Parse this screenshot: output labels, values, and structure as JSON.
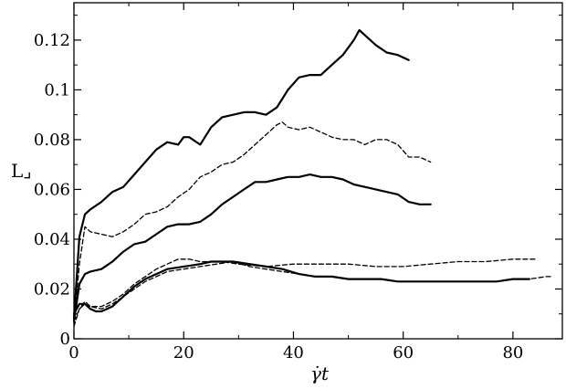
{
  "chart_data": {
    "type": "line",
    "xlabel": "γ̇t",
    "ylabel": "L⌟",
    "xlim": [
      0,
      89
    ],
    "ylim": [
      0,
      0.135
    ],
    "x_ticks": [
      0,
      20,
      40,
      60,
      80
    ],
    "x_tick_labels": [
      "0",
      "20",
      "40",
      "60",
      "80"
    ],
    "y_ticks": [
      0,
      0.02,
      0.04,
      0.06,
      0.08,
      0.1,
      0.12
    ],
    "y_tick_labels": [
      "0",
      "0.02",
      "0.04",
      "0.06",
      "0.08",
      "0.1",
      "0.12"
    ],
    "grid": false,
    "legend": "none",
    "series": [
      {
        "style": "solid",
        "width": 2.2,
        "color": "#000000",
        "x": [
          0,
          1,
          2,
          3,
          5,
          7,
          9,
          11,
          13,
          15,
          17,
          19,
          20,
          21,
          23,
          25,
          27,
          29,
          31,
          33,
          35,
          37,
          39,
          41,
          43,
          45,
          47,
          49,
          51,
          52,
          53,
          55,
          57,
          59,
          61
        ],
        "y": [
          0.008,
          0.041,
          0.05,
          0.052,
          0.055,
          0.059,
          0.061,
          0.066,
          0.071,
          0.076,
          0.079,
          0.078,
          0.081,
          0.081,
          0.078,
          0.085,
          0.089,
          0.09,
          0.091,
          0.091,
          0.09,
          0.093,
          0.1,
          0.105,
          0.106,
          0.106,
          0.11,
          0.114,
          0.12,
          0.124,
          0.122,
          0.118,
          0.115,
          0.114,
          0.112
        ]
      },
      {
        "style": "dashed",
        "width": 1.3,
        "color": "#000000",
        "x": [
          0,
          1,
          2,
          3,
          5,
          7,
          9,
          11,
          13,
          15,
          17,
          19,
          21,
          23,
          25,
          27,
          29,
          31,
          33,
          35,
          37,
          38,
          39,
          41,
          43,
          45,
          47,
          49,
          51,
          53,
          55,
          57,
          59,
          61,
          63,
          65
        ],
        "y": [
          0.006,
          0.03,
          0.045,
          0.043,
          0.042,
          0.041,
          0.043,
          0.046,
          0.05,
          0.051,
          0.053,
          0.057,
          0.06,
          0.065,
          0.067,
          0.07,
          0.071,
          0.074,
          0.078,
          0.082,
          0.086,
          0.087,
          0.085,
          0.084,
          0.085,
          0.083,
          0.081,
          0.08,
          0.08,
          0.078,
          0.08,
          0.08,
          0.078,
          0.073,
          0.073,
          0.071
        ]
      },
      {
        "style": "solid",
        "width": 2.2,
        "color": "#000000",
        "x": [
          0,
          1,
          2,
          3,
          5,
          7,
          9,
          11,
          13,
          15,
          17,
          19,
          21,
          23,
          25,
          27,
          29,
          31,
          33,
          35,
          37,
          39,
          41,
          43,
          45,
          47,
          49,
          51,
          53,
          55,
          57,
          59,
          61,
          63,
          65
        ],
        "y": [
          0.007,
          0.022,
          0.026,
          0.027,
          0.028,
          0.031,
          0.035,
          0.038,
          0.039,
          0.042,
          0.045,
          0.046,
          0.046,
          0.047,
          0.05,
          0.054,
          0.057,
          0.06,
          0.063,
          0.063,
          0.064,
          0.065,
          0.065,
          0.066,
          0.065,
          0.065,
          0.064,
          0.062,
          0.061,
          0.06,
          0.059,
          0.058,
          0.055,
          0.054,
          0.054
        ]
      },
      {
        "style": "dashed",
        "width": 1.3,
        "color": "#000000",
        "x": [
          0,
          1,
          2,
          3,
          5,
          7,
          9,
          11,
          13,
          15,
          17,
          19,
          21,
          23,
          25,
          27,
          30,
          35,
          40,
          45,
          50,
          55,
          60,
          65,
          70,
          75,
          80,
          84
        ],
        "y": [
          0.007,
          0.012,
          0.014,
          0.013,
          0.013,
          0.015,
          0.018,
          0.022,
          0.025,
          0.028,
          0.03,
          0.032,
          0.032,
          0.031,
          0.031,
          0.031,
          0.03,
          0.029,
          0.03,
          0.03,
          0.03,
          0.029,
          0.029,
          0.03,
          0.031,
          0.031,
          0.032,
          0.032
        ]
      },
      {
        "style": "solid",
        "width": 2.2,
        "color": "#000000",
        "x": [
          0,
          1,
          2,
          3,
          4,
          5,
          7,
          9,
          11,
          13,
          15,
          17,
          20,
          23,
          25,
          27,
          29,
          32,
          35,
          38,
          41,
          44,
          47,
          50,
          53,
          56,
          59,
          62,
          65,
          68,
          71,
          74,
          77,
          80,
          83
        ],
        "y": [
          0.01,
          0.014,
          0.014,
          0.012,
          0.011,
          0.011,
          0.013,
          0.017,
          0.021,
          0.024,
          0.026,
          0.028,
          0.029,
          0.03,
          0.031,
          0.031,
          0.031,
          0.03,
          0.029,
          0.028,
          0.026,
          0.025,
          0.025,
          0.024,
          0.024,
          0.024,
          0.023,
          0.023,
          0.023,
          0.023,
          0.023,
          0.023,
          0.023,
          0.024,
          0.024
        ]
      },
      {
        "style": "dashed",
        "width": 1.3,
        "color": "#000000",
        "x": [
          0,
          1,
          2,
          3,
          5,
          7,
          9,
          11,
          13,
          15,
          17,
          20,
          23,
          26,
          29,
          32,
          35,
          38,
          41,
          44,
          47,
          50,
          53,
          56,
          59,
          62,
          65,
          68,
          71,
          74,
          77,
          80,
          83,
          86,
          87
        ],
        "y": [
          0.005,
          0.012,
          0.015,
          0.013,
          0.012,
          0.014,
          0.017,
          0.02,
          0.023,
          0.025,
          0.027,
          0.028,
          0.029,
          0.03,
          0.031,
          0.029,
          0.028,
          0.027,
          0.026,
          0.025,
          0.025,
          0.024,
          0.024,
          0.024,
          0.023,
          0.023,
          0.023,
          0.023,
          0.023,
          0.023,
          0.023,
          0.024,
          0.024,
          0.025,
          0.025
        ]
      }
    ]
  }
}
